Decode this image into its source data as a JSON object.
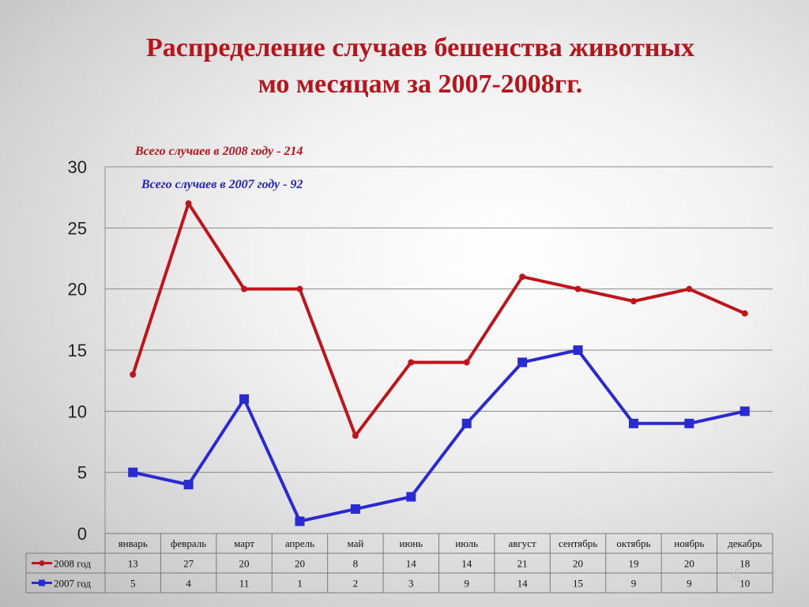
{
  "title": {
    "line1": "Распределение случаев бешенства животных",
    "line2": "мо месяцам за 2007-2008гг."
  },
  "annotations": {
    "total_2008": "Всего случаев в 2008 году - 214",
    "total_2007": "Всего случаев в 2007 году - 92"
  },
  "slide_number": "4",
  "colors": {
    "series_2008": "#c0141c",
    "series_2007": "#2a2ad2",
    "grid": "#8a8a8a"
  },
  "chart_data": {
    "type": "line",
    "title": "Распределение случаев бешенства животных мо месяцам за 2007-2008гг.",
    "categories": [
      "январь",
      "февраль",
      "март",
      "апрель",
      "май",
      "июнь",
      "июль",
      "август",
      "сентябрь",
      "октябрь",
      "ноябрь",
      "декабрь"
    ],
    "series": [
      {
        "name": "2008 год",
        "marker": "circle",
        "color": "#c0141c",
        "values": [
          13,
          27,
          20,
          20,
          8,
          14,
          14,
          21,
          20,
          19,
          20,
          18
        ]
      },
      {
        "name": "2007 год",
        "marker": "square",
        "color": "#2a2ad2",
        "values": [
          5,
          4,
          11,
          1,
          2,
          3,
          9,
          14,
          15,
          9,
          9,
          10
        ]
      }
    ],
    "ylim": [
      0,
      30
    ],
    "yticks": [
      0,
      5,
      10,
      15,
      20,
      25,
      30
    ],
    "grid": true,
    "legend": "data table below the chart",
    "xlabel": "",
    "ylabel": ""
  }
}
